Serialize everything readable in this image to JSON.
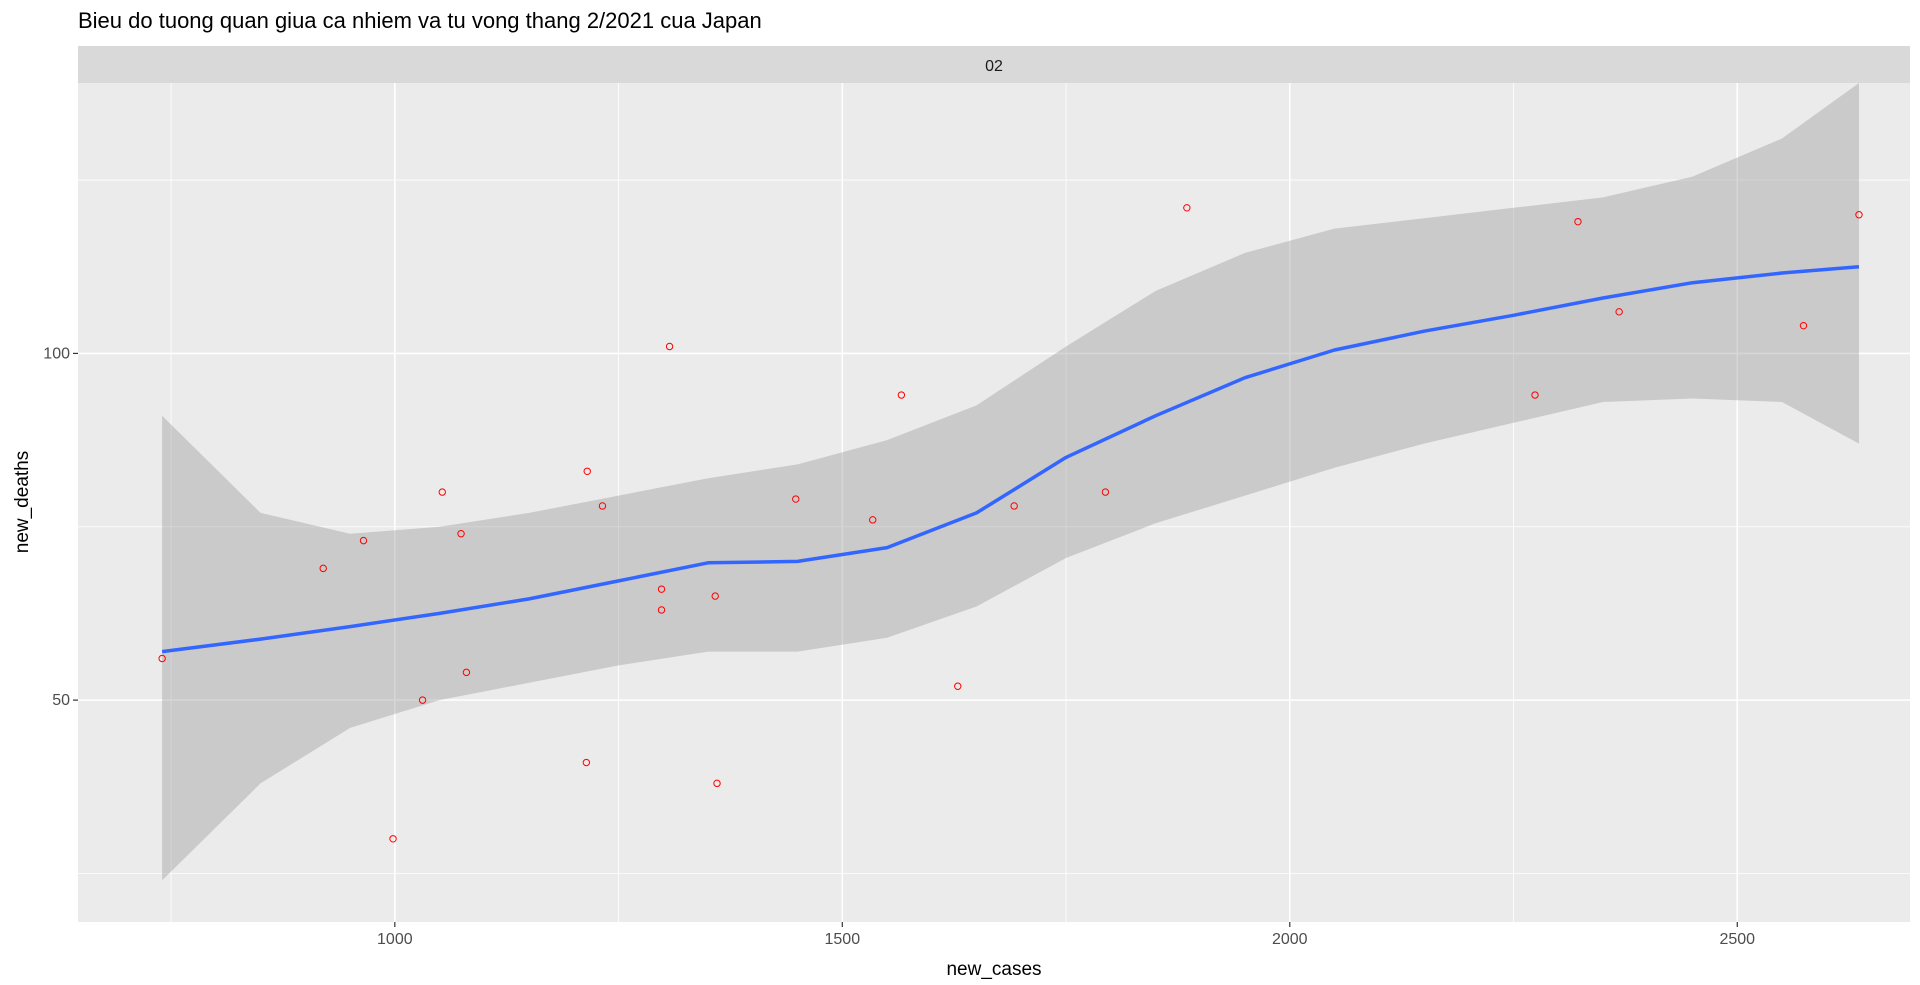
{
  "chart_data": {
    "type": "scatter",
    "title": "Bieu do tuong quan giua ca nhiem va tu vong thang 2/2021 cua Japan",
    "facet_label": "02",
    "xlabel": "new_cases",
    "ylabel": "new_deaths",
    "xlim": [
      646,
      2693
    ],
    "ylim": [
      18,
      139
    ],
    "x_ticks": [
      1000,
      1500,
      2000,
      2500
    ],
    "x_tick_labels": [
      "1000",
      "1500",
      "2000",
      "2500"
    ],
    "y_ticks": [
      50,
      100
    ],
    "y_tick_labels": [
      "50",
      "100"
    ],
    "grid": true,
    "points_color": "#ff0000",
    "smooth_color": "#3366ff",
    "ribbon_color": "#999999",
    "panel_bg": "#ebebeb",
    "strip_bg": "#d9d9d9",
    "points": [
      {
        "x": 740,
        "y": 56
      },
      {
        "x": 920,
        "y": 69
      },
      {
        "x": 965,
        "y": 73
      },
      {
        "x": 998,
        "y": 30
      },
      {
        "x": 1031,
        "y": 50
      },
      {
        "x": 1053,
        "y": 80
      },
      {
        "x": 1074,
        "y": 74
      },
      {
        "x": 1080,
        "y": 54
      },
      {
        "x": 1214,
        "y": 41
      },
      {
        "x": 1215,
        "y": 83
      },
      {
        "x": 1232,
        "y": 78
      },
      {
        "x": 1298,
        "y": 66
      },
      {
        "x": 1298,
        "y": 63
      },
      {
        "x": 1307,
        "y": 101
      },
      {
        "x": 1358,
        "y": 65
      },
      {
        "x": 1360,
        "y": 38
      },
      {
        "x": 1448,
        "y": 79
      },
      {
        "x": 1534,
        "y": 76
      },
      {
        "x": 1566,
        "y": 94
      },
      {
        "x": 1629,
        "y": 52
      },
      {
        "x": 1692,
        "y": 78
      },
      {
        "x": 1794,
        "y": 80
      },
      {
        "x": 1885,
        "y": 121
      },
      {
        "x": 2274,
        "y": 94
      },
      {
        "x": 2322,
        "y": 119
      },
      {
        "x": 2368,
        "y": 106
      },
      {
        "x": 2574,
        "y": 104
      },
      {
        "x": 2636,
        "y": 120
      }
    ],
    "smooth": {
      "x": [
        740,
        850,
        950,
        1050,
        1150,
        1250,
        1350,
        1450,
        1550,
        1650,
        1750,
        1850,
        1950,
        2050,
        2150,
        2250,
        2350,
        2450,
        2550,
        2636
      ],
      "y": [
        57.0,
        58.8,
        60.6,
        62.5,
        64.6,
        67.2,
        69.8,
        70.0,
        72.0,
        77.0,
        85.0,
        91.0,
        96.5,
        100.5,
        103.2,
        105.5,
        108.0,
        110.2,
        111.6,
        112.5
      ],
      "lower": [
        24.0,
        38.0,
        46.0,
        50.0,
        52.5,
        55.0,
        57.0,
        57.0,
        59.0,
        63.5,
        70.5,
        75.5,
        79.5,
        83.5,
        87.0,
        90.0,
        93.0,
        93.5,
        93.0,
        87.0
      ],
      "upper": [
        91.0,
        77.0,
        74.0,
        75.0,
        77.0,
        79.5,
        82.0,
        84.0,
        87.5,
        92.5,
        101.0,
        109.0,
        114.5,
        118.0,
        119.5,
        121.0,
        122.5,
        125.5,
        131.0,
        139.0
      ]
    }
  }
}
